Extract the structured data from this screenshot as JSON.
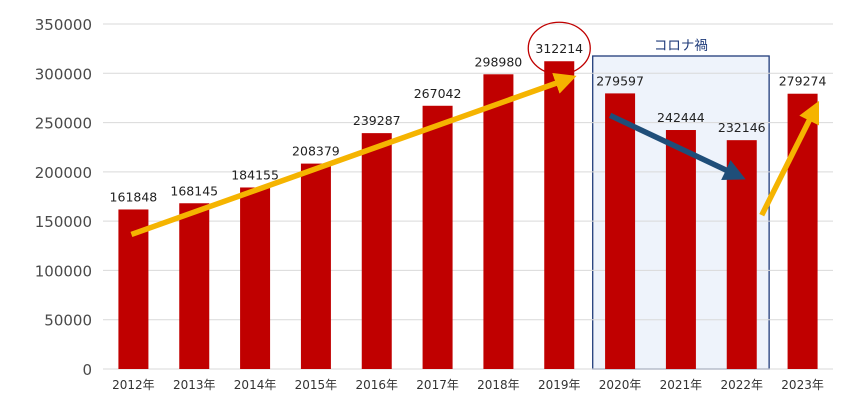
{
  "chart_data": {
    "type": "bar",
    "categories": [
      "2012年",
      "2013年",
      "2014年",
      "2015年",
      "2016年",
      "2017年",
      "2018年",
      "2019年",
      "2020年",
      "2021年",
      "2022年",
      "2023年"
    ],
    "values": [
      161848,
      168145,
      184155,
      208379,
      239287,
      267042,
      298980,
      312214,
      279597,
      242444,
      232146,
      279274
    ],
    "data_labels": [
      "161848",
      "168145",
      "184155",
      "208379",
      "239287",
      "267042",
      "298980",
      "312214",
      "279597",
      "242444",
      "232146",
      "279274"
    ],
    "ylim": [
      0,
      350000
    ],
    "yticks": [
      0,
      50000,
      100000,
      150000,
      200000,
      250000,
      300000,
      350000
    ],
    "ytick_labels": [
      "0",
      "50000",
      "100000",
      "150000",
      "200000",
      "250000",
      "300000",
      "350000"
    ],
    "grid": true,
    "annotations": {
      "highlight_label": "コロナ禍",
      "highlight_range": [
        "2020年",
        "2022年"
      ],
      "circled_category": "2019年",
      "arrows": [
        {
          "from": "2012年",
          "to": "2019年",
          "direction": "up",
          "color": "#f5b400"
        },
        {
          "from": "2020年",
          "to": "2022年",
          "direction": "down",
          "color": "#1f4e79"
        },
        {
          "from": "2022年",
          "to": "2023年",
          "direction": "up",
          "color": "#f5b400"
        }
      ]
    },
    "colors": {
      "bar": "#c00000",
      "grid": "#d9d9d9",
      "highlight_fill": "#eef3fb",
      "highlight_border": "#1f3b7a",
      "circle": "#c00000"
    }
  }
}
